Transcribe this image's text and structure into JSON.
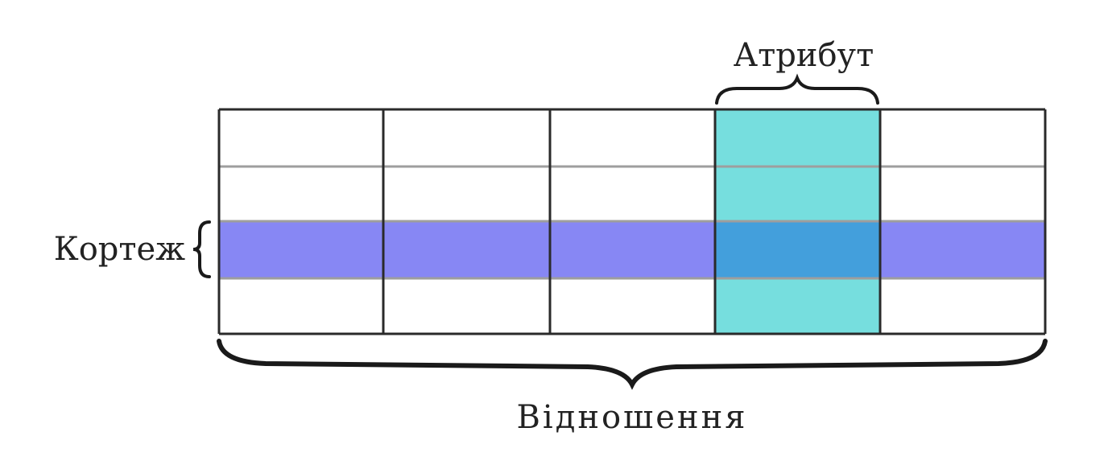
{
  "labels": {
    "attribute": "Атрибут",
    "tuple": "Кортеж",
    "relation": "Відношення"
  },
  "table": {
    "columns": 5,
    "rows": 4,
    "highlighted_column_index": 3,
    "highlighted_row_index": 2
  },
  "colors": {
    "attribute_fill": "#76DEDE",
    "tuple_fill": "#8787F4",
    "overlap_fill": "#439FDC",
    "grid_line": "#2A2A2A",
    "inner_line": "#9E9E9E",
    "bracket": "#1A1A1A"
  }
}
